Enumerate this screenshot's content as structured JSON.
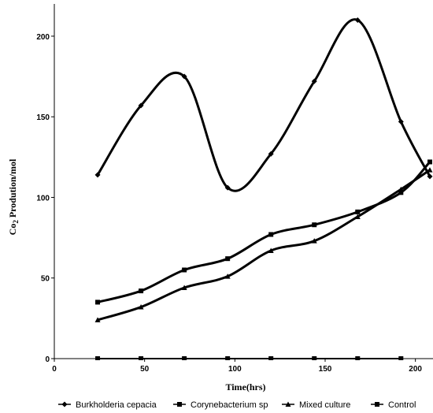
{
  "chart_data": {
    "type": "line",
    "xlabel": "Time(hrs)",
    "ylabel_main": "Co",
    "ylabel_sub": "2",
    "ylabel_rest": " Prodution/mol",
    "xlim": [
      0,
      208
    ],
    "ylim": [
      0,
      220
    ],
    "xticks": [
      0,
      50,
      100,
      150,
      200
    ],
    "yticks": [
      0,
      50,
      100,
      150,
      200
    ],
    "grid": false,
    "legend_position": "bottom",
    "series": [
      {
        "name": "Burkholderia cepacia",
        "marker": "diamond",
        "x": [
          24,
          48,
          72,
          96,
          120,
          144,
          168,
          192,
          208
        ],
        "y": [
          114,
          157,
          175,
          106,
          127,
          172,
          210,
          147,
          113
        ]
      },
      {
        "name": "Corynebacterium sp",
        "marker": "square",
        "x": [
          24,
          48,
          72,
          96,
          120,
          144,
          168,
          192,
          208
        ],
        "y": [
          35,
          42,
          55,
          62,
          77,
          83,
          91,
          103,
          122
        ]
      },
      {
        "name": "Mixed culture",
        "marker": "triangle",
        "x": [
          24,
          48,
          72,
          96,
          120,
          144,
          168,
          192,
          208
        ],
        "y": [
          24,
          32,
          44,
          51,
          67,
          73,
          88,
          105,
          117
        ]
      },
      {
        "name": "Control",
        "marker": "square",
        "x": [
          24,
          48,
          72,
          96,
          120,
          144,
          168,
          192
        ],
        "y": [
          0,
          0,
          0,
          0,
          0,
          0,
          0,
          0
        ]
      }
    ]
  }
}
